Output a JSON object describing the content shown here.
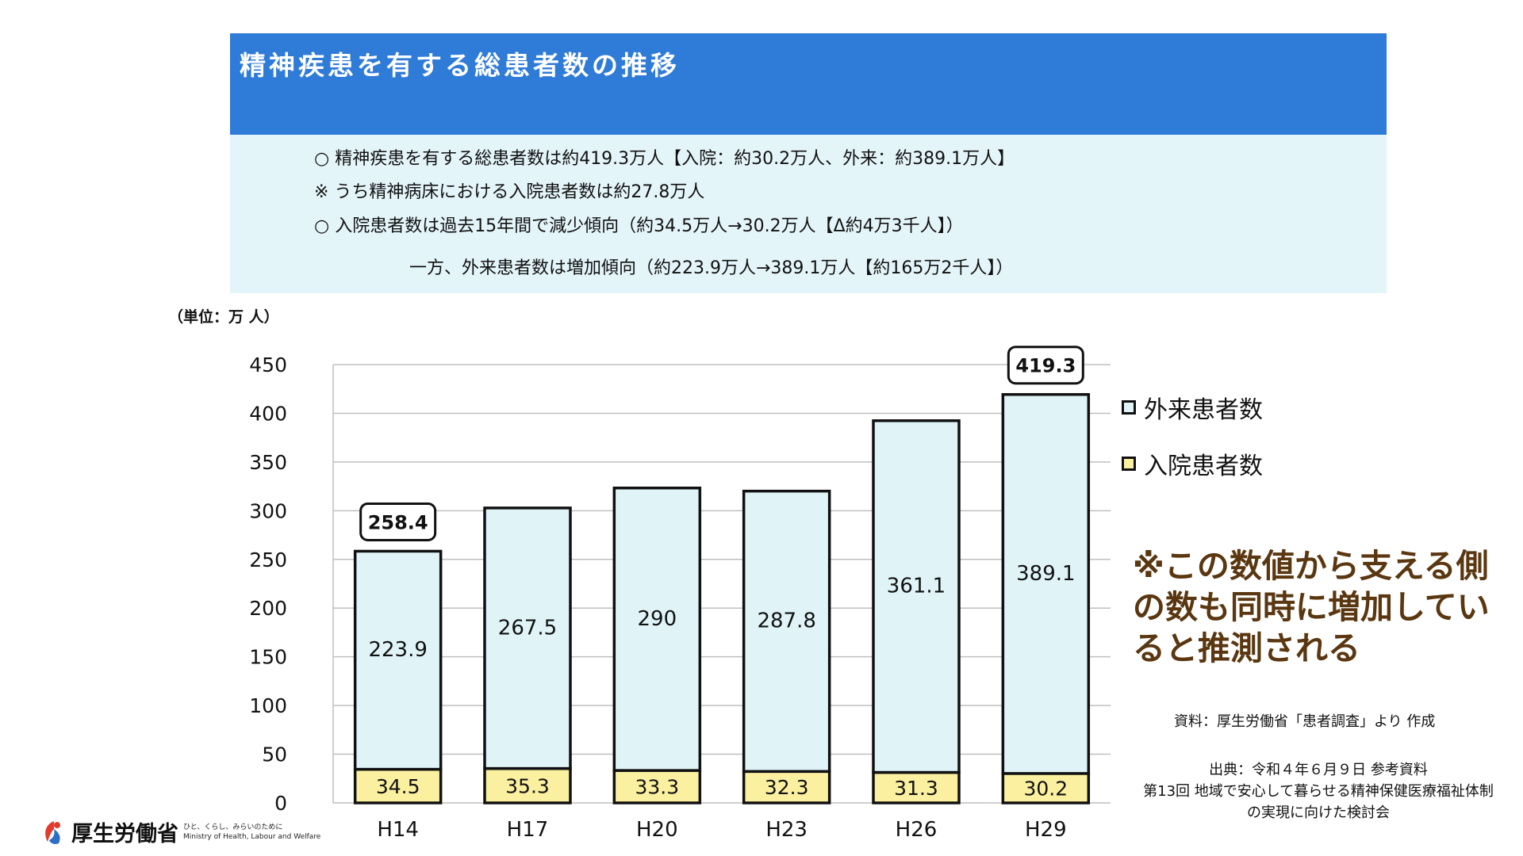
{
  "header": {
    "title": "精神疾患を有する総患者数の推移"
  },
  "summary": {
    "line1": "○ 精神疾患を有する総患者数は約419.3万人【入院：約30.2万人、外来：約389.1万人】",
    "line2": "※ うち精神病床における入院患者数は約27.8万人",
    "line3": "○ 入院患者数は過去15年間で減少傾向（約34.5万人→30.2万人【Δ約4万3千人】）",
    "line4": "一方、外来患者数は増加傾向（約223.9万人→389.1万人【約165万2千人】）"
  },
  "unit_label": "（単位：万 人）",
  "legend": {
    "outpatient": "外来患者数",
    "inpatient": "入院患者数"
  },
  "note": "※この数値から支える側の数も同時に増加していると推測される",
  "source": "資料：厚生労働省「患者調査」より 作成",
  "citation": {
    "line1": "出典：令和４年６月９日 参考資料",
    "line2": "第13回 地域で安心して暮らせる精神保健医療福祉体制",
    "line3": "の実現に向けた検討会"
  },
  "logo": {
    "name": "厚生労働省",
    "tagline": "ひと、くらし、みらいのために",
    "english": "Ministry of Health, Labour and Welfare"
  },
  "colors": {
    "title_bar": "#2f7bd8",
    "summary_bg": "#e4f5fa",
    "outpatient": "#e0f4f8",
    "inpatient": "#fbf0a0",
    "note": "#5a3710"
  },
  "chart_data": {
    "type": "bar",
    "stacked": true,
    "categories": [
      "H14",
      "H17",
      "H20",
      "H23",
      "H26",
      "H29"
    ],
    "series": [
      {
        "name": "入院患者数",
        "values": [
          34.5,
          35.3,
          33.3,
          32.3,
          31.3,
          30.2
        ]
      },
      {
        "name": "外来患者数",
        "values": [
          223.9,
          267.5,
          290,
          287.8,
          361.1,
          389.1
        ]
      }
    ],
    "totals_labeled": [
      {
        "category": "H14",
        "label": "258.4"
      },
      {
        "category": "H29",
        "label": "419.3"
      }
    ],
    "yticks": [
      "0",
      "50",
      "100",
      "150",
      "200",
      "250",
      "300",
      "350",
      "400",
      "450"
    ],
    "ylim": [
      0,
      450
    ],
    "grid": true,
    "ylabel": "（単位：万 人）",
    "legend_position": "right"
  }
}
